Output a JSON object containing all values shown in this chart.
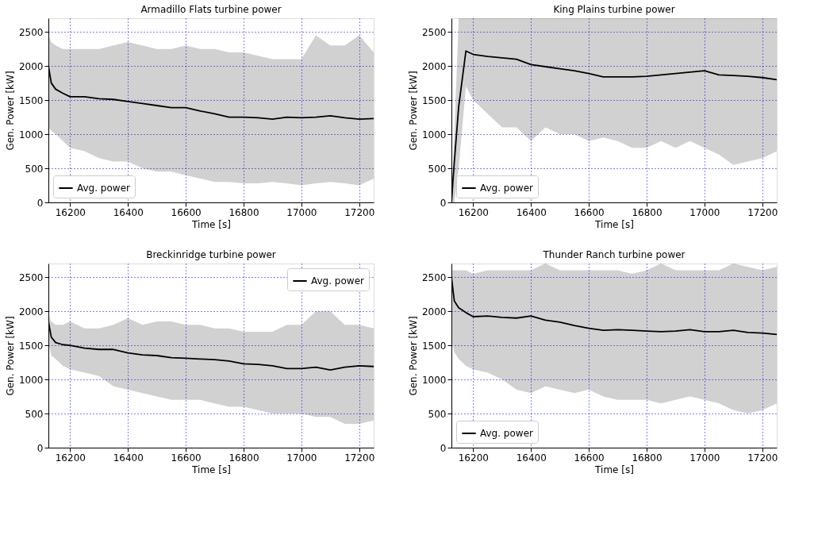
{
  "chart_data": [
    {
      "type": "line",
      "title": "Armadillo Flats turbine power",
      "xlabel": "Time [s]",
      "ylabel": "Gen. Power [kW]",
      "x": [
        16125,
        16135,
        16150,
        16175,
        16200,
        16250,
        16300,
        16350,
        16400,
        16450,
        16500,
        16550,
        16600,
        16650,
        16700,
        16750,
        16800,
        16850,
        16900,
        16950,
        17000,
        17050,
        17100,
        17150,
        17200,
        17250
      ],
      "series": [
        {
          "name": "Avg. power",
          "color": "#000000",
          "values": [
            2000,
            1750,
            1660,
            1600,
            1550,
            1550,
            1520,
            1510,
            1480,
            1450,
            1420,
            1390,
            1390,
            1340,
            1300,
            1250,
            1250,
            1240,
            1220,
            1250,
            1240,
            1250,
            1270,
            1240,
            1220,
            1230
          ],
          "lower": [
            1100,
            1050,
            1000,
            900,
            800,
            750,
            650,
            600,
            600,
            500,
            450,
            450,
            400,
            350,
            300,
            300,
            280,
            280,
            300,
            280,
            250,
            280,
            300,
            280,
            250,
            350
          ],
          "upper": [
            2450,
            2350,
            2300,
            2250,
            2250,
            2250,
            2250,
            2300,
            2350,
            2300,
            2250,
            2250,
            2300,
            2250,
            2250,
            2200,
            2200,
            2150,
            2100,
            2100,
            2100,
            2450,
            2300,
            2300,
            2450,
            2200
          ]
        }
      ],
      "xlim": [
        16125,
        17250
      ],
      "ylim": [
        0,
        2700
      ],
      "xticks": [
        16200,
        16400,
        16600,
        16800,
        17000,
        17200
      ],
      "yticks": [
        0,
        500,
        1000,
        1500,
        2000,
        2500
      ],
      "grid": true,
      "legend": "bottom left",
      "line_style": "solid",
      "marker": "none"
    },
    {
      "type": "line",
      "title": "King Plains turbine power",
      "xlabel": "Time [s]",
      "ylabel": "Gen. Power [kW]",
      "x": [
        16125,
        16135,
        16150,
        16175,
        16200,
        16250,
        16300,
        16350,
        16400,
        16450,
        16500,
        16550,
        16600,
        16650,
        16700,
        16750,
        16800,
        16850,
        16900,
        16950,
        17000,
        17050,
        17100,
        17150,
        17200,
        17250
      ],
      "series": [
        {
          "name": "Avg. power",
          "color": "#000000",
          "values": [
            0,
            600,
            1400,
            2220,
            2170,
            2140,
            2120,
            2100,
            2020,
            1990,
            1960,
            1930,
            1890,
            1840,
            1840,
            1840,
            1850,
            1870,
            1890,
            1910,
            1930,
            1870,
            1860,
            1850,
            1830,
            1800
          ],
          "lower": [
            0,
            0,
            500,
            1700,
            1500,
            1300,
            1100,
            1100,
            900,
            1100,
            1000,
            1000,
            900,
            950,
            900,
            800,
            800,
            900,
            800,
            900,
            800,
            700,
            550,
            600,
            650,
            750
          ],
          "upper": [
            0,
            1000,
            2700,
            2700,
            2700,
            2700,
            2700,
            2700,
            2700,
            2700,
            2700,
            2700,
            2700,
            2700,
            2700,
            2700,
            2700,
            2700,
            2700,
            2700,
            2700,
            2700,
            2700,
            2700,
            2700,
            2700
          ]
        }
      ],
      "xlim": [
        16125,
        17250
      ],
      "ylim": [
        0,
        2700
      ],
      "xticks": [
        16200,
        16400,
        16600,
        16800,
        17000,
        17200
      ],
      "yticks": [
        0,
        500,
        1000,
        1500,
        2000,
        2500
      ],
      "grid": true,
      "legend": "bottom left",
      "line_style": "solid",
      "marker": "none"
    },
    {
      "type": "line",
      "title": "Breckinridge turbine power",
      "xlabel": "Time [s]",
      "ylabel": "Gen. Power [kW]",
      "x": [
        16125,
        16135,
        16150,
        16175,
        16200,
        16250,
        16300,
        16350,
        16400,
        16450,
        16500,
        16550,
        16600,
        16650,
        16700,
        16750,
        16800,
        16850,
        16900,
        16950,
        17000,
        17050,
        17100,
        17150,
        17200,
        17250
      ],
      "series": [
        {
          "name": "Avg. power",
          "color": "#000000",
          "values": [
            1850,
            1620,
            1540,
            1510,
            1500,
            1460,
            1440,
            1440,
            1390,
            1360,
            1350,
            1320,
            1310,
            1300,
            1290,
            1270,
            1230,
            1220,
            1200,
            1160,
            1160,
            1180,
            1140,
            1180,
            1200,
            1190
          ],
          "lower": [
            1550,
            1350,
            1300,
            1200,
            1150,
            1100,
            1050,
            900,
            850,
            800,
            750,
            700,
            700,
            700,
            650,
            600,
            600,
            550,
            500,
            500,
            500,
            450,
            450,
            350,
            350,
            400
          ],
          "upper": [
            1950,
            1850,
            1800,
            1800,
            1850,
            1750,
            1750,
            1800,
            1900,
            1800,
            1850,
            1850,
            1800,
            1800,
            1750,
            1750,
            1700,
            1700,
            1700,
            1800,
            1800,
            2000,
            2000,
            1800,
            1800,
            1750
          ]
        }
      ],
      "xlim": [
        16125,
        17250
      ],
      "ylim": [
        0,
        2700
      ],
      "xticks": [
        16200,
        16400,
        16600,
        16800,
        17000,
        17200
      ],
      "yticks": [
        0,
        500,
        1000,
        1500,
        2000,
        2500
      ],
      "grid": true,
      "legend": "top right",
      "line_style": "solid",
      "marker": "none"
    },
    {
      "type": "line",
      "title": "Thunder Ranch turbine power",
      "xlabel": "Time [s]",
      "ylabel": "Gen. Power [kW]",
      "x": [
        16125,
        16135,
        16150,
        16175,
        16200,
        16250,
        16300,
        16350,
        16400,
        16450,
        16500,
        16550,
        16600,
        16650,
        16700,
        16750,
        16800,
        16850,
        16900,
        16950,
        17000,
        17050,
        17100,
        17150,
        17200,
        17250
      ],
      "series": [
        {
          "name": "Avg. power",
          "color": "#000000",
          "values": [
            2500,
            2150,
            2050,
            1980,
            1920,
            1930,
            1910,
            1900,
            1930,
            1870,
            1840,
            1790,
            1750,
            1720,
            1730,
            1720,
            1710,
            1700,
            1710,
            1730,
            1700,
            1700,
            1720,
            1690,
            1680,
            1660
          ],
          "lower": [
            1600,
            1400,
            1300,
            1200,
            1150,
            1100,
            1000,
            850,
            800,
            900,
            850,
            800,
            850,
            750,
            700,
            700,
            700,
            650,
            700,
            750,
            700,
            650,
            550,
            500,
            550,
            650
          ],
          "upper": [
            2600,
            2600,
            2600,
            2600,
            2550,
            2600,
            2600,
            2600,
            2600,
            2700,
            2600,
            2600,
            2600,
            2600,
            2600,
            2550,
            2600,
            2700,
            2600,
            2600,
            2600,
            2600,
            2700,
            2650,
            2600,
            2650
          ]
        }
      ],
      "xlim": [
        16125,
        17250
      ],
      "ylim": [
        0,
        2700
      ],
      "xticks": [
        16200,
        16400,
        16600,
        16800,
        17000,
        17200
      ],
      "yticks": [
        0,
        500,
        1000,
        1500,
        2000,
        2500
      ],
      "grid": true,
      "legend": "bottom left",
      "line_style": "solid",
      "marker": "none"
    }
  ]
}
